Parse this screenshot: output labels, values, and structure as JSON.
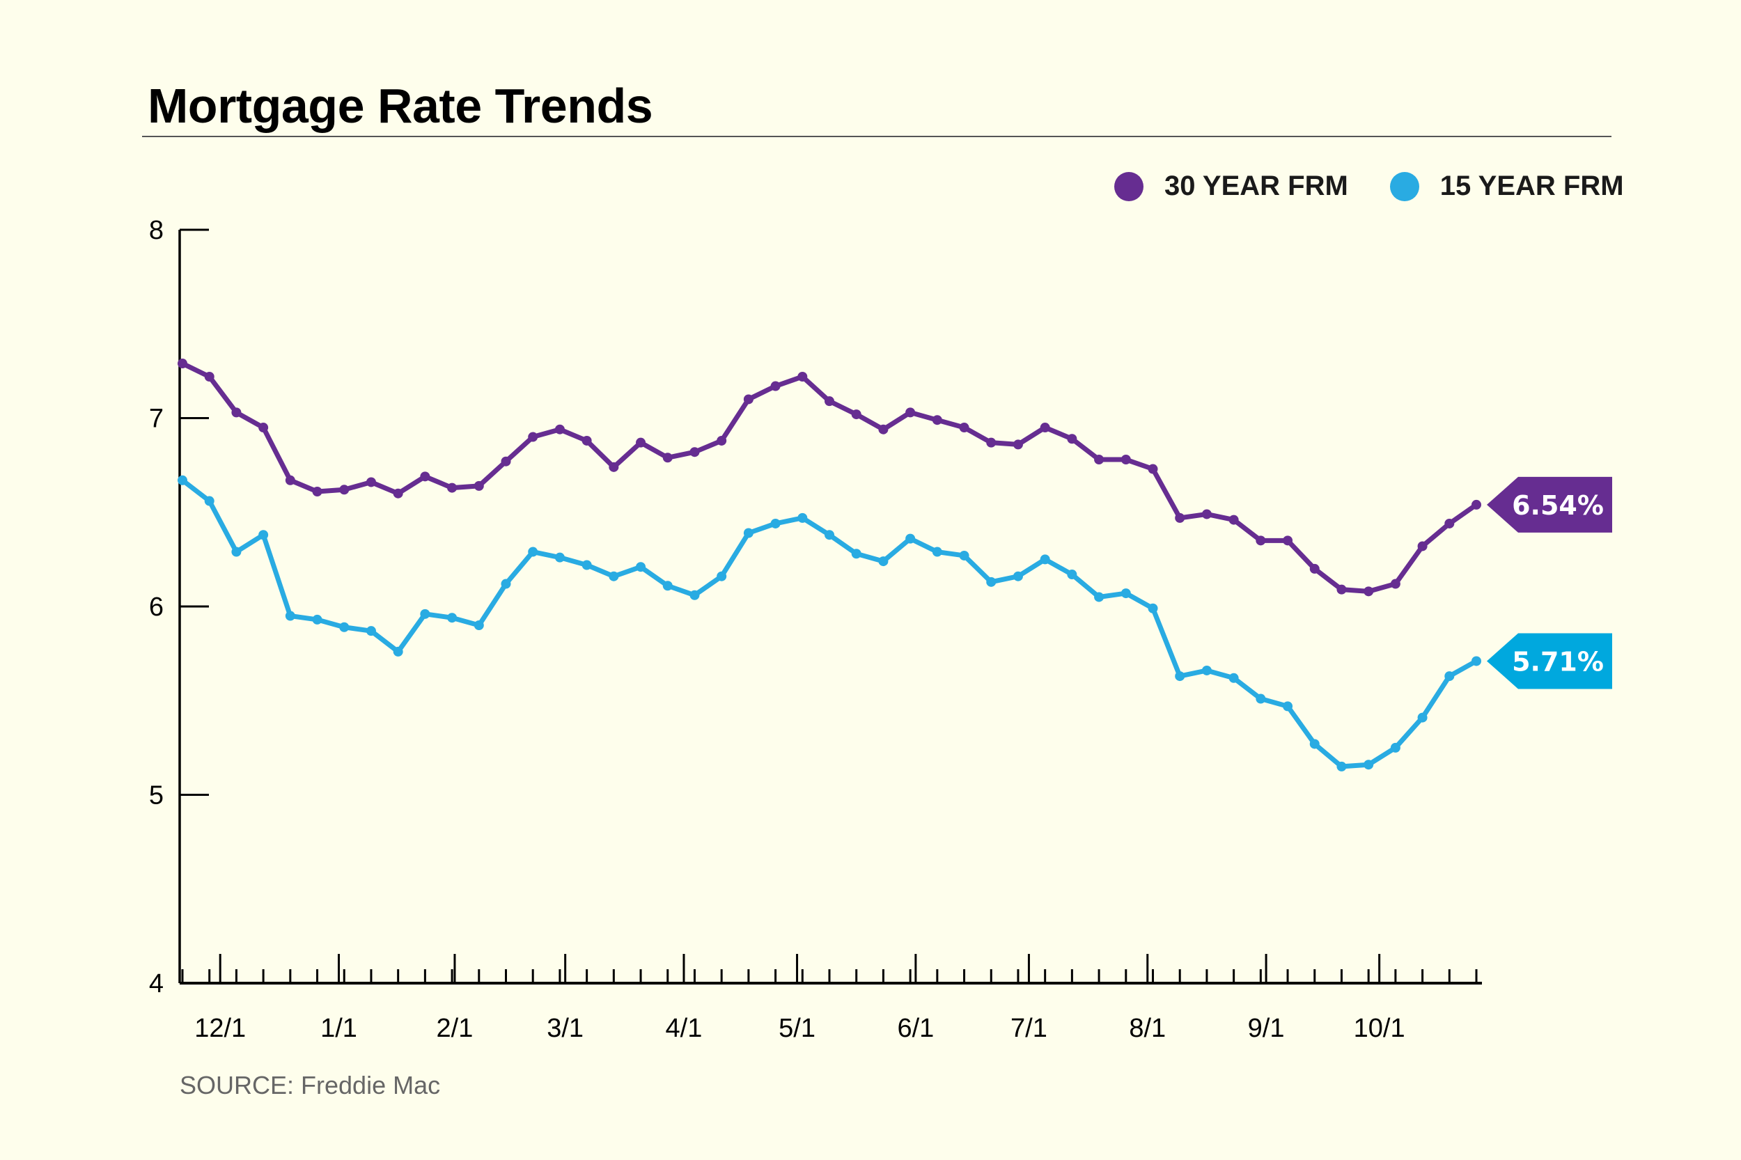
{
  "title": "Mortgage Rate Trends",
  "source": "SOURCE: Freddie Mac",
  "colors": {
    "background": "#fefeec",
    "series_30": "#662d91",
    "series_15": "#29abe2",
    "tag_15": "#00a8de"
  },
  "legend": [
    {
      "label": "30 YEAR FRM",
      "color": "#662d91"
    },
    {
      "label": "15 YEAR FRM",
      "color": "#29abe2"
    }
  ],
  "chart_data": {
    "type": "line",
    "title": "Mortgage Rate Trends",
    "xlabel": "",
    "ylabel": "",
    "ylim": [
      4,
      8
    ],
    "yticks": [
      "4",
      "5",
      "6",
      "7",
      "8"
    ],
    "xtick_labels": [
      "12/1",
      "1/1",
      "2/1",
      "3/1",
      "4/1",
      "5/1",
      "6/1",
      "7/1",
      "8/1",
      "9/1",
      "10/1"
    ],
    "xtick_positions": [
      1.4,
      5.8,
      10.1,
      14.2,
      18.6,
      22.8,
      27.2,
      31.4,
      35.8,
      40.2,
      44.4
    ],
    "minor_ticks_count": 34,
    "legend_position": "top-right",
    "grid": false,
    "series": [
      {
        "name": "30 YEAR FRM",
        "color": "#662d91",
        "end_label": "6.54%",
        "values": [
          7.29,
          7.22,
          7.03,
          6.95,
          6.67,
          6.61,
          6.62,
          6.66,
          6.6,
          6.69,
          6.63,
          6.64,
          6.77,
          6.9,
          6.94,
          6.88,
          6.74,
          6.87,
          6.79,
          6.82,
          6.88,
          7.1,
          7.17,
          7.22,
          7.09,
          7.02,
          6.94,
          7.03,
          6.99,
          6.95,
          6.87,
          6.86,
          6.95,
          6.89,
          6.78,
          6.78,
          6.73,
          6.47,
          6.49,
          6.46,
          6.35,
          6.35,
          6.2,
          6.09,
          6.08,
          6.12,
          6.32,
          6.44,
          6.54
        ]
      },
      {
        "name": "15 YEAR FRM",
        "color": "#29abe2",
        "end_label": "5.71%",
        "values": [
          6.67,
          6.56,
          6.29,
          6.38,
          5.95,
          5.93,
          5.89,
          5.87,
          5.76,
          5.96,
          5.94,
          5.9,
          6.12,
          6.29,
          6.26,
          6.22,
          6.16,
          6.21,
          6.11,
          6.06,
          6.16,
          6.39,
          6.44,
          6.47,
          6.38,
          6.28,
          6.24,
          6.36,
          6.29,
          6.27,
          6.13,
          6.16,
          6.25,
          6.17,
          6.05,
          6.07,
          5.99,
          5.63,
          5.66,
          5.62,
          5.51,
          5.47,
          5.27,
          5.15,
          5.16,
          5.25,
          5.41,
          5.63,
          5.71
        ]
      }
    ]
  }
}
